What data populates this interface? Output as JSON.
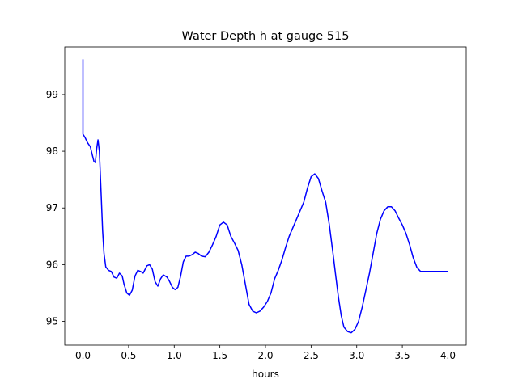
{
  "chart_data": {
    "type": "line",
    "title": "Water Depth h at gauge 515",
    "xlabel": "hours",
    "ylabel": "",
    "xlim": [
      -0.2,
      4.2
    ],
    "ylim": [
      94.58,
      99.84
    ],
    "xticks": [
      0.0,
      0.5,
      1.0,
      1.5,
      2.0,
      2.5,
      3.0,
      3.5,
      4.0
    ],
    "xtick_labels": [
      "0.0",
      "0.5",
      "1.0",
      "1.5",
      "2.0",
      "2.5",
      "3.0",
      "3.5",
      "4.0"
    ],
    "yticks": [
      95,
      96,
      97,
      98,
      99
    ],
    "ytick_labels": [
      "95",
      "96",
      "97",
      "98",
      "99"
    ],
    "grid": false,
    "series": [
      {
        "color": "#0000ff",
        "x": [
          0.0,
          0.0,
          0.0,
          0.02,
          0.05,
          0.08,
          0.1,
          0.12,
          0.135,
          0.15,
          0.165,
          0.18,
          0.2,
          0.215,
          0.23,
          0.25,
          0.28,
          0.31,
          0.34,
          0.37,
          0.4,
          0.43,
          0.45,
          0.48,
          0.51,
          0.54,
          0.57,
          0.6,
          0.63,
          0.66,
          0.7,
          0.73,
          0.76,
          0.79,
          0.82,
          0.85,
          0.88,
          0.9,
          0.92,
          0.95,
          0.98,
          1.01,
          1.04,
          1.07,
          1.1,
          1.13,
          1.16,
          1.2,
          1.23,
          1.26,
          1.3,
          1.34,
          1.38,
          1.42,
          1.46,
          1.5,
          1.54,
          1.58,
          1.62,
          1.66,
          1.7,
          1.74,
          1.78,
          1.82,
          1.86,
          1.9,
          1.94,
          1.98,
          2.02,
          2.06,
          2.1,
          2.14,
          2.18,
          2.22,
          2.26,
          2.3,
          2.34,
          2.38,
          2.42,
          2.46,
          2.5,
          2.54,
          2.58,
          2.62,
          2.66,
          2.7,
          2.74,
          2.77,
          2.8,
          2.83,
          2.86,
          2.9,
          2.94,
          2.98,
          3.02,
          3.06,
          3.1,
          3.14,
          3.18,
          3.22,
          3.26,
          3.3,
          3.34,
          3.38,
          3.42,
          3.46,
          3.5,
          3.54,
          3.58,
          3.62,
          3.66,
          3.7,
          3.74,
          3.78,
          3.82,
          3.86,
          3.9,
          3.94,
          3.98,
          4.0
        ],
        "y": [
          99.62,
          99.62,
          98.3,
          98.25,
          98.15,
          98.08,
          97.95,
          97.82,
          97.8,
          98.05,
          98.2,
          98.0,
          97.2,
          96.6,
          96.2,
          95.96,
          95.9,
          95.88,
          95.78,
          95.76,
          95.85,
          95.8,
          95.65,
          95.5,
          95.46,
          95.55,
          95.8,
          95.9,
          95.88,
          95.85,
          95.98,
          96.0,
          95.92,
          95.7,
          95.62,
          95.75,
          95.82,
          95.8,
          95.78,
          95.7,
          95.6,
          95.56,
          95.6,
          95.8,
          96.05,
          96.15,
          96.15,
          96.18,
          96.22,
          96.2,
          96.15,
          96.14,
          96.22,
          96.35,
          96.5,
          96.7,
          96.75,
          96.7,
          96.5,
          96.38,
          96.25,
          96.0,
          95.65,
          95.3,
          95.18,
          95.15,
          95.18,
          95.25,
          95.35,
          95.5,
          95.75,
          95.9,
          96.08,
          96.3,
          96.5,
          96.65,
          96.8,
          96.95,
          97.1,
          97.35,
          97.55,
          97.6,
          97.52,
          97.3,
          97.1,
          96.7,
          96.2,
          95.8,
          95.42,
          95.1,
          94.9,
          94.82,
          94.8,
          94.86,
          95.0,
          95.25,
          95.55,
          95.85,
          96.2,
          96.55,
          96.8,
          96.95,
          97.02,
          97.02,
          96.95,
          96.82,
          96.7,
          96.55,
          96.35,
          96.12,
          95.95,
          95.88,
          95.88,
          95.88,
          95.88,
          95.88,
          95.88,
          95.88,
          95.88,
          95.88
        ]
      }
    ]
  }
}
